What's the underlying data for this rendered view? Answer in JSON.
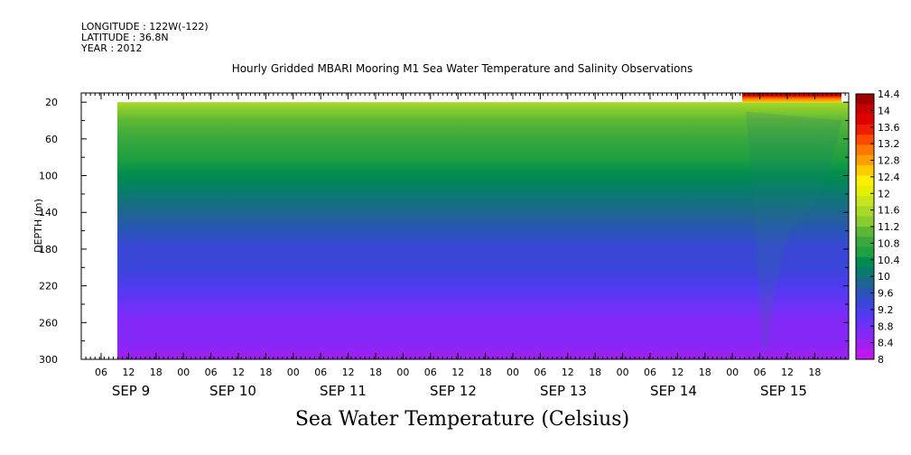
{
  "header": {
    "longitude": "LONGITUDE : 122W(-122)",
    "latitude": "LATITUDE : 36.8N",
    "year": "YEAR : 2012"
  },
  "chart_data": {
    "type": "heatmap",
    "title": "Hourly Gridded MBARI Mooring M1 Sea Water Temperature and Salinity Observations",
    "xlabel": "",
    "ylabel": "DEPTH (m)",
    "colorbar_label": "Sea Water Temperature (Celsius)",
    "y_ticks": [
      20,
      60,
      100,
      140,
      180,
      220,
      260,
      300
    ],
    "y_range": [
      10,
      300
    ],
    "y_reversed": true,
    "x_hour_ticks": [
      "06",
      "12",
      "18",
      "00",
      "06",
      "12",
      "18",
      "00",
      "06",
      "12",
      "18",
      "00",
      "06",
      "12",
      "18",
      "00",
      "06",
      "12",
      "18",
      "00",
      "06",
      "12",
      "18",
      "00",
      "06",
      "12",
      "18"
    ],
    "x_day_labels": [
      "SEP  9",
      "SEP 10",
      "SEP 11",
      "SEP 12",
      "SEP 13",
      "SEP 14",
      "SEP 15"
    ],
    "colorbar_ticks": [
      "14.4",
      "14",
      "13.6",
      "13.2",
      "12.8",
      "12.4",
      "12",
      "11.6",
      "11.2",
      "10.8",
      "10.4",
      "10",
      "9.6",
      "9.2",
      "8.8",
      "8.4",
      "8"
    ],
    "colorbar_colors": [
      "#9e0000",
      "#c80000",
      "#e00000",
      "#f01e00",
      "#ff4800",
      "#ff7800",
      "#ffa000",
      "#ffcc00",
      "#fff000",
      "#e4f000",
      "#c8e420",
      "#a8d828",
      "#88cc30",
      "#5cb834",
      "#3aa83c",
      "#20a040",
      "#008c50",
      "#0a7a6e",
      "#1e6690",
      "#2a55b8",
      "#3a46d8",
      "#4d3cf0",
      "#6a32f8",
      "#8428f8",
      "#a020f0",
      "#bc18f0"
    ],
    "depth_profile": [
      {
        "depth": 20,
        "temp": 11.7
      },
      {
        "depth": 40,
        "temp": 11.1
      },
      {
        "depth": 60,
        "temp": 10.7
      },
      {
        "depth": 80,
        "temp": 10.5
      },
      {
        "depth": 100,
        "temp": 10.4
      },
      {
        "depth": 120,
        "temp": 10.0
      },
      {
        "depth": 140,
        "temp": 9.8
      },
      {
        "depth": 160,
        "temp": 9.6
      },
      {
        "depth": 180,
        "temp": 9.4
      },
      {
        "depth": 200,
        "temp": 9.2
      },
      {
        "depth": 220,
        "temp": 9.0
      },
      {
        "depth": 240,
        "temp": 8.8
      },
      {
        "depth": 260,
        "temp": 8.6
      },
      {
        "depth": 280,
        "temp": 8.4
      },
      {
        "depth": 300,
        "temp": 8.3
      }
    ],
    "surface_warm_layer": {
      "start": "SEP 15",
      "depth_max": 20,
      "temp_max": 14.4
    }
  }
}
